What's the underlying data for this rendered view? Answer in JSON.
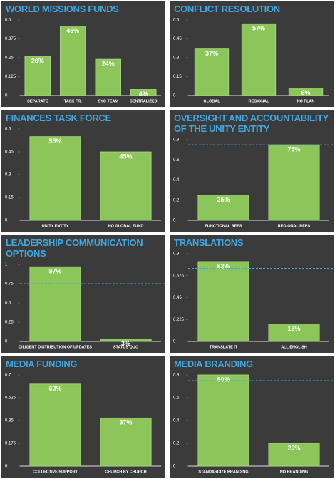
{
  "chart_data": [
    {
      "type": "bar",
      "title": "WORLD MISSIONS FUNDS",
      "categories": [
        "SEPARATE",
        "TASK FR.",
        "SYC TEAM",
        "CENTRALIZED"
      ],
      "values": [
        0.26,
        0.46,
        0.24,
        0.04
      ],
      "value_labels": [
        "26%",
        "46%",
        "24%",
        "4%"
      ],
      "ylim": [
        0,
        0.5
      ],
      "yticks": [
        0,
        0.125,
        0.25,
        0.375,
        0.5
      ],
      "color": "#8cc65a"
    },
    {
      "type": "bar",
      "title": "CONFLICT RESOLUTION",
      "categories": [
        "GLOBAL",
        "REGIONAL",
        "NO PLAN"
      ],
      "values": [
        0.37,
        0.57,
        0.06
      ],
      "value_labels": [
        "37%",
        "57%",
        "6%"
      ],
      "ylim": [
        0,
        0.6
      ],
      "yticks": [
        0,
        0.15,
        0.3,
        0.45,
        0.6
      ],
      "color": "#8cc65a"
    },
    {
      "type": "bar",
      "title": "FINANCES TASK FORCE",
      "categories": [
        "UNITY ENTITY",
        "NO GLOBAL FUND"
      ],
      "values": [
        0.55,
        0.45
      ],
      "value_labels": [
        "55%",
        "45%"
      ],
      "ylim": [
        0,
        0.6
      ],
      "yticks": [
        0,
        0.15,
        0.3,
        0.45,
        0.6
      ],
      "color": "#8cc65a"
    },
    {
      "type": "bar",
      "title": "OVERSIGHT AND ACCOUNTABILITY OF THE UNITY ENTITY",
      "categories": [
        "FUNCTIONAL REPS",
        "REGIONAL REPS"
      ],
      "values": [
        0.25,
        0.75
      ],
      "value_labels": [
        "25%",
        "75%"
      ],
      "ylim": [
        0,
        0.8
      ],
      "yticks": [
        0,
        0.2,
        0.4,
        0.6,
        0.8
      ],
      "color": "#8cc65a",
      "reference_line": 0.75
    },
    {
      "type": "bar",
      "title": "LEADERSHIP COMMUNICATION OPTIONS",
      "categories": [
        "DILIGENT DISTRIBUTION OF UPDATES",
        "STATUS QUO"
      ],
      "values": [
        0.97,
        0.03
      ],
      "value_labels": [
        "97%",
        "3%"
      ],
      "ylim": [
        0,
        1
      ],
      "yticks": [
        0,
        0.25,
        0.5,
        0.75,
        1
      ],
      "color": "#8cc65a",
      "reference_line": 0.75
    },
    {
      "type": "bar",
      "title": "TRANSLATIONS",
      "categories": [
        "TRANSLATE IT",
        "ALL ENGLISH"
      ],
      "values": [
        0.82,
        0.18
      ],
      "value_labels": [
        "82%",
        "18%"
      ],
      "ylim": [
        0,
        0.9
      ],
      "yticks": [
        0,
        0.225,
        0.45,
        0.675,
        0.9
      ],
      "color": "#8cc65a",
      "reference_line": 0.75
    },
    {
      "type": "bar",
      "title": "MEDIA FUNDING",
      "categories": [
        "COLLECTIVE SUPPORT",
        "CHURCH BY CHURCH"
      ],
      "values": [
        0.63,
        0.37
      ],
      "value_labels": [
        "63%",
        "37%"
      ],
      "ylim": [
        0,
        0.7
      ],
      "yticks": [
        0,
        0.175,
        0.35,
        0.525,
        0.7
      ],
      "color": "#8cc65a"
    },
    {
      "type": "bar",
      "title": "MEDIA BRANDING",
      "categories": [
        "STANDARDIZE BRANDING",
        "NO BRANDING"
      ],
      "values": [
        0.8,
        0.2
      ],
      "value_labels": [
        "80%",
        "20%"
      ],
      "ylim": [
        0,
        0.8
      ],
      "yticks": [
        0,
        0.2,
        0.4,
        0.6,
        0.8
      ],
      "color": "#8cc65a",
      "reference_line": 0.75
    }
  ]
}
